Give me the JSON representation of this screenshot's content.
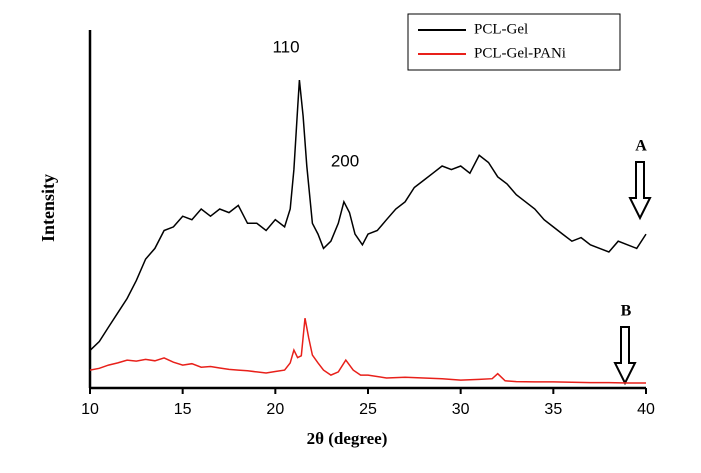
{
  "chart_data": {
    "type": "line",
    "xlabel": "2θ (degree)",
    "ylabel": "Intensity",
    "xlim": [
      10,
      40
    ],
    "xticks": [
      10,
      15,
      20,
      25,
      30,
      35,
      40
    ],
    "ylim": [
      0,
      100
    ],
    "annotations": [
      "110",
      "200",
      "A",
      "B"
    ],
    "series": [
      {
        "name": "PCL-Gel",
        "color": "#000000",
        "x": [
          10,
          10.5,
          11,
          11.5,
          12,
          12.5,
          13,
          13.5,
          14,
          14.5,
          15,
          15.5,
          16,
          16.5,
          17,
          17.5,
          18,
          18.5,
          19,
          19.5,
          20,
          20.5,
          20.8,
          21,
          21.2,
          21.3,
          21.5,
          21.7,
          22,
          22.3,
          22.6,
          23,
          23.4,
          23.7,
          24,
          24.3,
          24.7,
          25,
          25.5,
          26,
          26.5,
          27,
          27.5,
          28,
          28.5,
          29,
          29.5,
          30,
          30.5,
          31,
          31.5,
          32,
          32.5,
          33,
          33.5,
          34,
          34.5,
          35,
          35.5,
          36,
          36.5,
          37,
          37.5,
          38,
          38.5,
          39,
          39.5,
          40
        ],
        "values": [
          10.5,
          13,
          17,
          21,
          25,
          30,
          36,
          39,
          44,
          45,
          48,
          47,
          50,
          48,
          50,
          49,
          51,
          46,
          46,
          44,
          47,
          45,
          50,
          61,
          78,
          86,
          76,
          62,
          46,
          43,
          39,
          41,
          46,
          52,
          49,
          43,
          40,
          43,
          44,
          47,
          50,
          52,
          56,
          58,
          60,
          62,
          61,
          62,
          60,
          65,
          63,
          59,
          57,
          54,
          52,
          50,
          47,
          45,
          43,
          41,
          42,
          40,
          39,
          38,
          41,
          40,
          39,
          43
        ]
      },
      {
        "name": "PCL-Gel-PANi",
        "color": "#e8201a",
        "x": [
          10,
          10.5,
          11,
          11.5,
          12,
          12.5,
          13,
          13.5,
          14,
          14.5,
          15,
          15.5,
          16,
          16.5,
          17,
          17.5,
          18,
          18.5,
          19,
          19.5,
          20,
          20.5,
          20.8,
          21,
          21.2,
          21.4,
          21.6,
          21.8,
          22,
          22.3,
          22.6,
          23,
          23.4,
          23.8,
          24.2,
          24.6,
          25,
          26,
          27,
          28,
          29,
          30,
          31,
          31.7,
          32,
          32.4,
          33,
          34,
          35,
          36,
          37,
          38,
          39,
          40
        ],
        "values": [
          5,
          5.5,
          6.4,
          7,
          7.8,
          7.5,
          8,
          7.6,
          8.4,
          7.2,
          6.4,
          6.8,
          5.8,
          6,
          5.6,
          5.2,
          5,
          4.8,
          4.5,
          4.2,
          4.6,
          5,
          7,
          10.6,
          8.5,
          9,
          19.5,
          14,
          9.2,
          7,
          5,
          3.6,
          4.5,
          7.8,
          5,
          3.6,
          3.6,
          2.8,
          3,
          2.8,
          2.6,
          2.2,
          2.4,
          2.6,
          4,
          2,
          1.8,
          1.7,
          1.7,
          1.6,
          1.5,
          1.5,
          1.4,
          1.4
        ]
      }
    ]
  }
}
